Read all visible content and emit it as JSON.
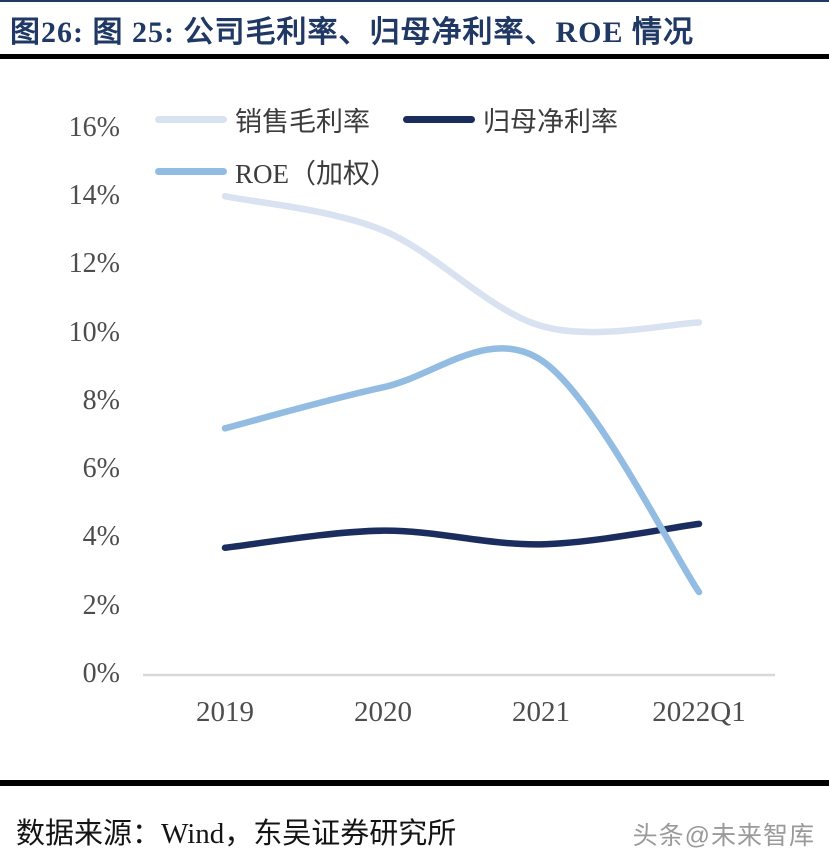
{
  "header": {
    "title": "图26:  图 25:  公司毛利率、归母净利率、ROE 情况"
  },
  "chart_data": {
    "type": "line",
    "title": "公司毛利率、归母净利率、ROE 情况",
    "categories": [
      "2019",
      "2020",
      "2021",
      "2022Q1"
    ],
    "series": [
      {
        "name": "销售毛利率",
        "color": "#d8e2f0",
        "values": [
          14.0,
          13.0,
          10.2,
          10.3
        ]
      },
      {
        "name": "归母净利率",
        "color": "#1b2d5e",
        "values": [
          3.7,
          4.2,
          3.8,
          4.4
        ]
      },
      {
        "name": "ROE（加权）",
        "color": "#92bce2",
        "values": [
          7.2,
          8.4,
          9.2,
          2.4
        ]
      }
    ],
    "unit": "%",
    "ylim": [
      0,
      16
    ],
    "y_tick_step": 2,
    "y_ticks": [
      "0%",
      "2%",
      "4%",
      "6%",
      "8%",
      "10%",
      "12%",
      "14%",
      "16%"
    ],
    "grid": false,
    "smooth": true,
    "legend_position": "top-left"
  },
  "footer": {
    "source": "数据来源：Wind，东吴证券研究所",
    "watermark": "头条@未来智库"
  }
}
